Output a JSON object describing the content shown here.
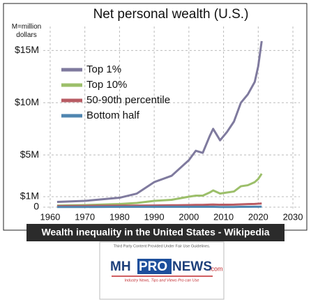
{
  "chart_data": {
    "type": "line",
    "title": "Net personal wealth (U.S.)",
    "y_label": "M=million dollars",
    "x": [
      1962,
      1970,
      1980,
      1985,
      1990,
      1995,
      2000,
      2002,
      2004,
      2006,
      2007,
      2009,
      2011,
      2013,
      2015,
      2017,
      2019,
      2020,
      2021
    ],
    "series": [
      {
        "name": "Top 1%",
        "color": "#7f7a9e",
        "values": [
          0.5,
          0.6,
          0.9,
          1.3,
          2.4,
          3.0,
          4.5,
          5.4,
          5.2,
          6.8,
          7.5,
          6.4,
          7.2,
          8.2,
          10.0,
          10.8,
          12.0,
          13.5,
          15.9
        ]
      },
      {
        "name": "Top 10%",
        "color": "#9cbf6a",
        "values": [
          0.15,
          0.2,
          0.3,
          0.4,
          0.6,
          0.7,
          1.0,
          1.1,
          1.1,
          1.4,
          1.6,
          1.3,
          1.4,
          1.5,
          2.0,
          2.1,
          2.4,
          2.7,
          3.2
        ]
      },
      {
        "name": "50-90th percentile",
        "color": "#b85b63",
        "values": [
          0.1,
          0.12,
          0.14,
          0.15,
          0.16,
          0.18,
          0.2,
          0.22,
          0.22,
          0.24,
          0.25,
          0.23,
          0.23,
          0.24,
          0.27,
          0.29,
          0.31,
          0.33,
          0.35
        ]
      },
      {
        "name": "Bottom half",
        "color": "#4f86b0",
        "values": [
          0.02,
          0.02,
          0.03,
          0.03,
          0.03,
          0.03,
          0.03,
          0.03,
          0.03,
          0.03,
          0.03,
          0.02,
          0.02,
          0.02,
          0.03,
          0.03,
          0.04,
          0.04,
          0.05
        ]
      }
    ],
    "xlim": [
      1958,
      2032
    ],
    "xticks": [
      1960,
      1970,
      1980,
      1990,
      2000,
      2010,
      2020,
      2030
    ],
    "ylim": [
      -0.2,
      17.3
    ],
    "yticks": [
      0,
      {
        "value": 1,
        "label": "$1M"
      },
      {
        "value": 5,
        "label": "$5M"
      },
      {
        "value": 10,
        "label": "$10M"
      },
      {
        "value": 15,
        "label": "$15M"
      }
    ],
    "grid": true,
    "legend": "upper left"
  },
  "caption": "Wealth inequality in the United States - Wikipedia",
  "logo": {
    "notice": "Third Party Content Provided Under Fair Use Guidelines.",
    "mh": "MH",
    "pro": "PRO",
    "news": "NEWS",
    "com": ".com",
    "tagline": "Industry News, Tips and Views Pro can Use"
  }
}
